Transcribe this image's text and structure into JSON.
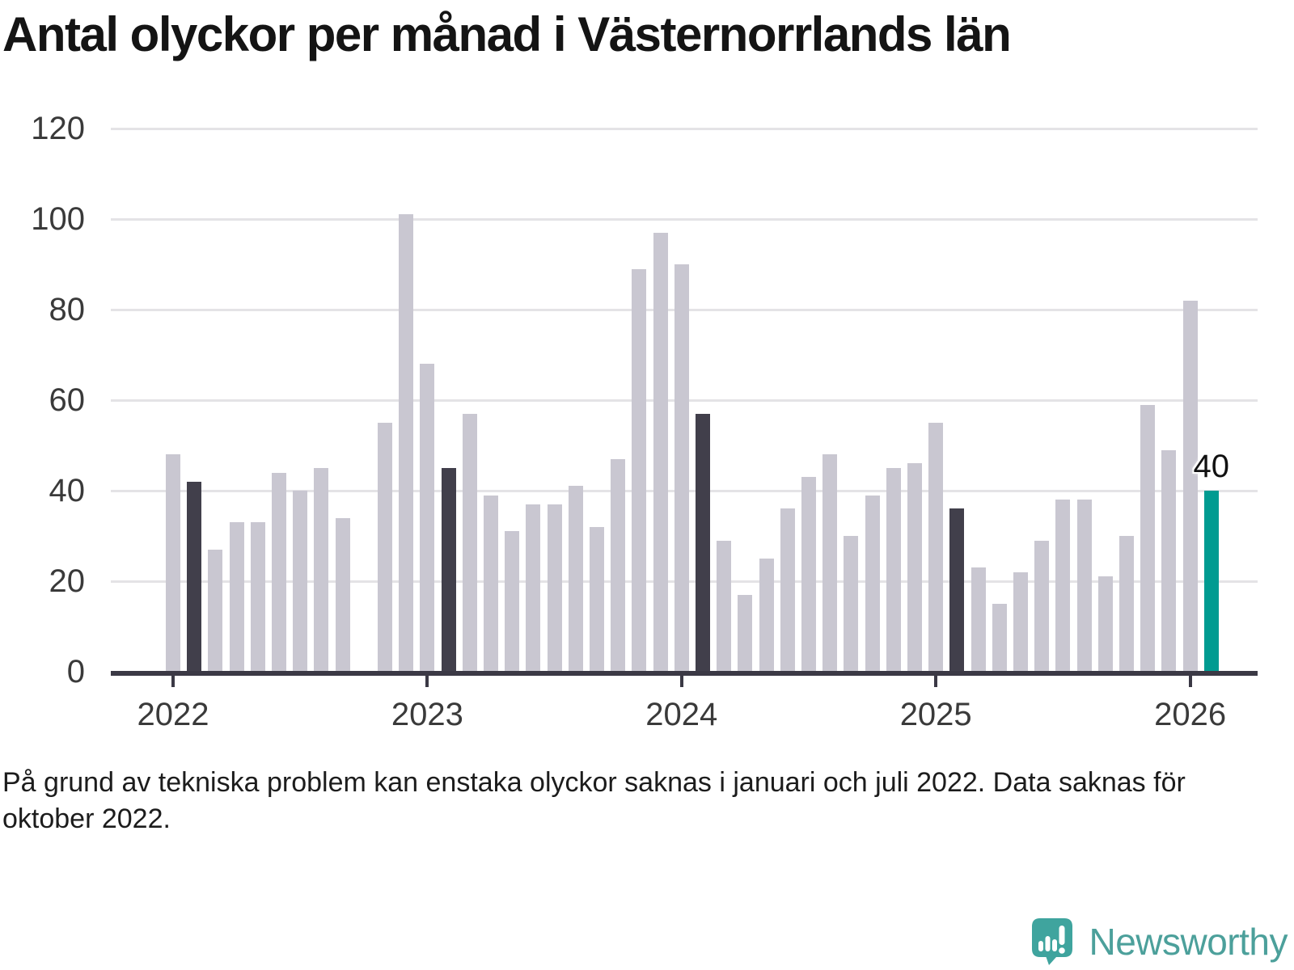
{
  "chart_data": {
    "type": "bar",
    "title": "Antal olyckor per månad i Västernorrlands län",
    "footnote": "På grund av tekniska problem kan enstaka olyckor saknas i januari och juli 2022. Data saknas för oktober 2022.",
    "ylim": [
      0,
      120
    ],
    "yticks": [
      0,
      20,
      40,
      60,
      80,
      100,
      120
    ],
    "grid": "horizontal",
    "x": [
      "2022-01",
      "2022-02",
      "2022-03",
      "2022-04",
      "2022-05",
      "2022-06",
      "2022-07",
      "2022-08",
      "2022-09",
      "2022-10",
      "2022-11",
      "2022-12",
      "2023-01",
      "2023-02",
      "2023-03",
      "2023-04",
      "2023-05",
      "2023-06",
      "2023-07",
      "2023-08",
      "2023-09",
      "2023-10",
      "2023-11",
      "2023-12",
      "2024-01",
      "2024-02",
      "2024-03",
      "2024-04",
      "2024-05",
      "2024-06",
      "2024-07",
      "2024-08",
      "2024-09",
      "2024-10",
      "2024-11",
      "2024-12",
      "2025-01",
      "2025-02",
      "2025-03",
      "2025-04",
      "2025-05",
      "2025-06",
      "2025-07",
      "2025-08",
      "2025-09",
      "2025-10",
      "2025-11",
      "2025-12",
      "2026-01",
      "2026-02"
    ],
    "values": [
      48,
      42,
      27,
      33,
      33,
      44,
      40,
      45,
      34,
      null,
      55,
      101,
      68,
      45,
      57,
      39,
      31,
      37,
      37,
      41,
      32,
      47,
      89,
      97,
      90,
      57,
      29,
      17,
      25,
      36,
      43,
      48,
      30,
      39,
      45,
      46,
      55,
      36,
      23,
      15,
      22,
      29,
      38,
      38,
      21,
      30,
      59,
      49,
      82,
      40
    ],
    "highlight_dark_indices": [
      1,
      13,
      25,
      37
    ],
    "current_index": 49,
    "data_label": {
      "index": 49,
      "text": "40"
    },
    "year_labels": [
      "2022",
      "2023",
      "2024",
      "2025",
      "2026"
    ],
    "year_tick_month_indices": [
      0,
      12,
      24,
      36,
      48
    ],
    "colors": {
      "bar_default": "#C9C7D1",
      "bar_reference": "#413F4B",
      "bar_current": "#009B91",
      "gridline": "#E4E3E6",
      "axis": "#3B3945",
      "axis_label": "#3A3A3A",
      "title": "#141414"
    }
  },
  "branding": {
    "logo_text": "Newsworthy",
    "logo_color": "#4CA09B",
    "logo_bubble_color": "#3FA49E"
  }
}
